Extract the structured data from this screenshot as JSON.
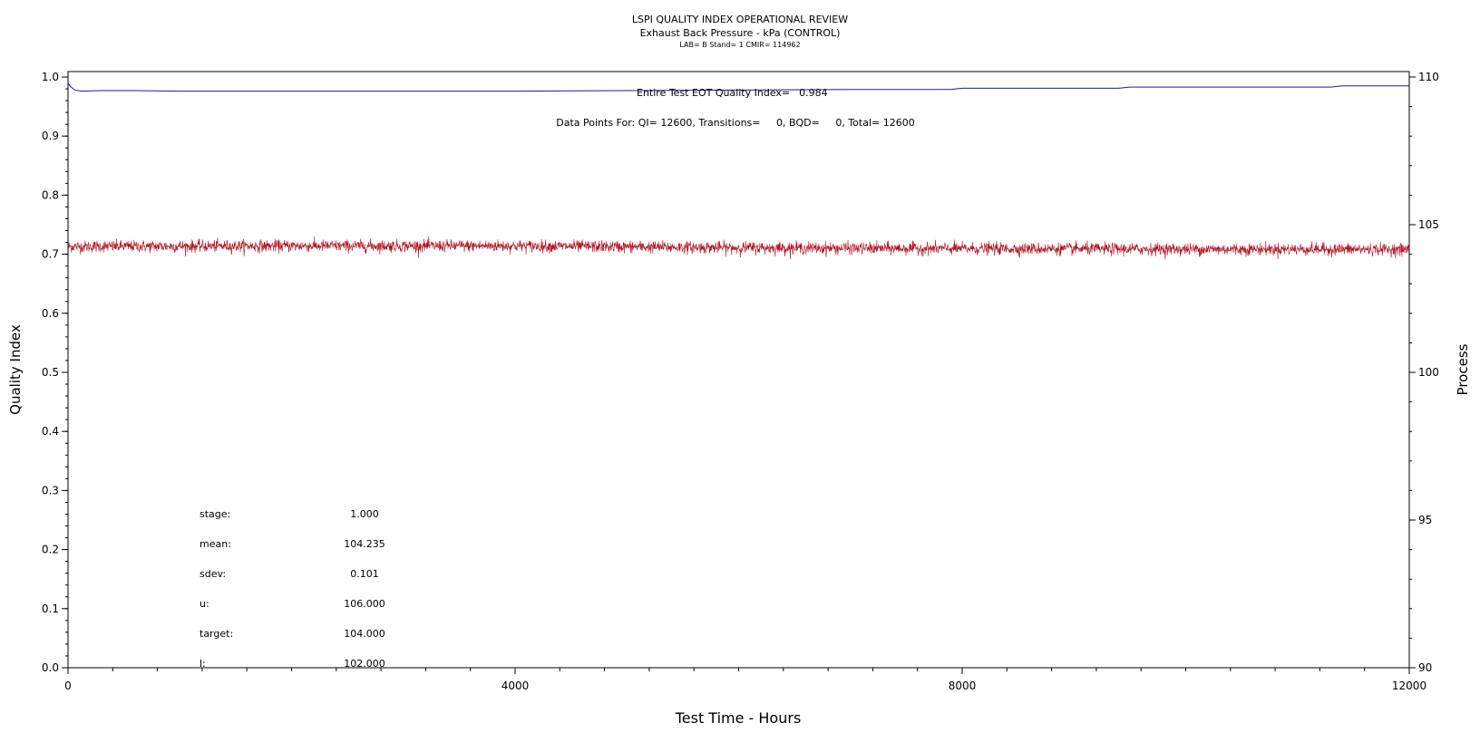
{
  "chart_data": {
    "type": "line",
    "title": "LSPI QUALITY INDEX OPERATIONAL REVIEW",
    "subtitle": "Exhaust Back Pressure - kPa (CONTROL)",
    "subsubtitle": "LAB= B Stand= 1 CMIR= 114962",
    "xlabel": "Test Time - Hours",
    "ylabel_left": "Quality Index",
    "ylabel_right": "Process",
    "xlim": [
      0,
      12000
    ],
    "ylim_left": [
      0.0,
      1.0
    ],
    "ylim_right": [
      90,
      110
    ],
    "x_ticks": [
      "0",
      "4000",
      "8000",
      "12000"
    ],
    "y_left_ticks": [
      "0.0",
      "0.1",
      "0.2",
      "0.3",
      "0.4",
      "0.5",
      "0.6",
      "0.7",
      "0.8",
      "0.9",
      "1.0"
    ],
    "y_right_ticks": [
      "90",
      "95",
      "100",
      "105",
      "110"
    ],
    "quality_index_series": {
      "axis": "left",
      "color": "#1a1aa6",
      "x": [
        0,
        20,
        60,
        120,
        300,
        600,
        1000,
        2000,
        3000,
        4000,
        5000,
        6000,
        7000,
        7900,
        8000,
        9000,
        9400,
        9500,
        10500,
        11300,
        11400,
        12000
      ],
      "y": [
        0.99,
        0.984,
        0.978,
        0.976,
        0.977,
        0.977,
        0.976,
        0.976,
        0.976,
        0.976,
        0.977,
        0.978,
        0.979,
        0.979,
        0.981,
        0.981,
        0.981,
        0.983,
        0.983,
        0.983,
        0.985,
        0.985
      ]
    },
    "process_series": {
      "axis": "right",
      "color": "#b01020",
      "x": [
        0,
        1000,
        2000,
        3000,
        4000,
        5000,
        6000,
        7000,
        8000,
        9000,
        10000,
        11000,
        12000
      ],
      "y": [
        104.26,
        104.27,
        104.28,
        104.28,
        104.28,
        104.25,
        104.22,
        104.2,
        104.19,
        104.18,
        104.17,
        104.17,
        104.16
      ],
      "noise_sdev": 0.101
    },
    "annotations": {
      "eot_label": "Entire Test EOT Quality Index=",
      "eot_value": "0.984",
      "data_points_text": "Data Points For: QI= 12600, Transitions=     0, BQD=     0, Total= 12600"
    },
    "stats": [
      {
        "label": "stage:",
        "value": "1.000"
      },
      {
        "label": "mean:",
        "value": "104.235"
      },
      {
        "label": "sdev:",
        "value": "0.101"
      },
      {
        "label": "u:",
        "value": "106.000"
      },
      {
        "label": "target:",
        "value": "104.000"
      },
      {
        "label": "l:",
        "value": "102.000"
      }
    ]
  }
}
